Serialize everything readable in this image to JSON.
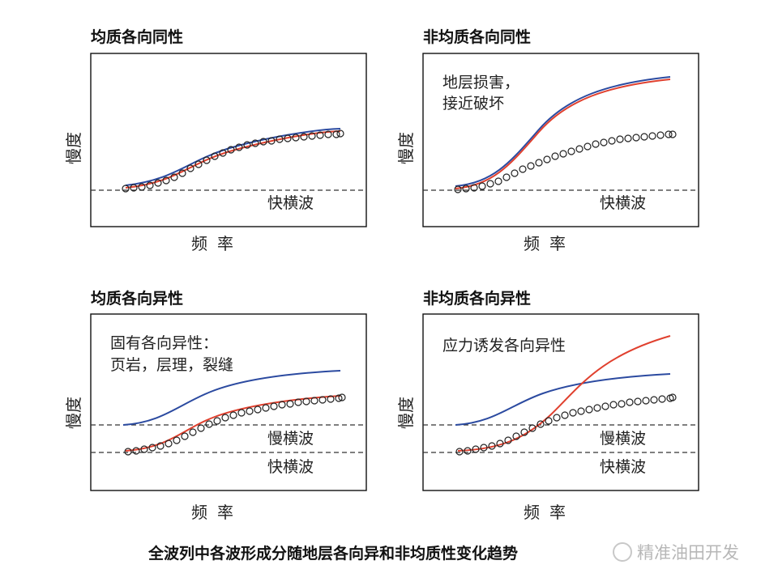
{
  "panels": [
    {
      "title": "均质各向同性",
      "ylabel": "慢度",
      "xlabel": "频率",
      "note": [],
      "waves": [
        "快横波"
      ]
    },
    {
      "title": "非均质各向同性",
      "ylabel": "慢度",
      "xlabel": "频率",
      "note": [
        "地层损害，",
        "接近破坏"
      ],
      "waves": [
        "快横波"
      ]
    },
    {
      "title": "均质各向异性",
      "ylabel": "慢度",
      "xlabel": "频率",
      "note": [
        "固有各向异性：",
        "页岩，层理，裂缝"
      ],
      "waves": [
        "慢横波",
        "快横波"
      ]
    },
    {
      "title": "非均质各向异性",
      "ylabel": "慢度",
      "xlabel": "频率",
      "note": [
        "应力诱发各向异性"
      ],
      "waves": [
        "慢横波",
        "快横波"
      ]
    }
  ],
  "caption": "全波列中各波形成分随地层各向异和非均质性变化趋势",
  "watermark": "精准油田开发",
  "colors": {
    "blue": "#2b4aa0",
    "red": "#e0402e",
    "marker": "#222222",
    "dash": "#333333"
  }
}
